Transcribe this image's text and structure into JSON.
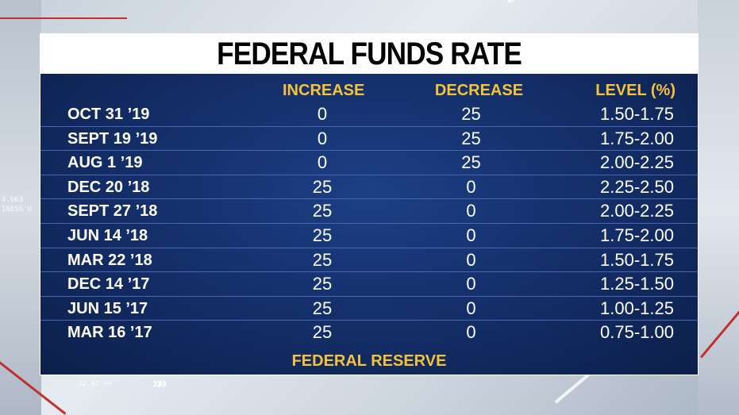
{
  "title": "FEDERAL FUNDS RATE",
  "columns": {
    "increase": "INCREASE",
    "decrease": "DECREASE",
    "level": "LEVEL (%)"
  },
  "rows": [
    {
      "date": "OCT 31 ’19",
      "increase": "0",
      "decrease": "25",
      "level": "1.50-1.75"
    },
    {
      "date": "SEPT 19 ’19",
      "increase": "0",
      "decrease": "25",
      "level": "1.75-2.00"
    },
    {
      "date": "AUG 1 ’19",
      "increase": "0",
      "decrease": "25",
      "level": "2.00-2.25"
    },
    {
      "date": "DEC 20 ’18",
      "increase": "25",
      "decrease": "0",
      "level": "2.25-2.50"
    },
    {
      "date": "SEPT 27 ’18",
      "increase": "25",
      "decrease": "0",
      "level": "2.00-2.25"
    },
    {
      "date": "JUN 14 ’18",
      "increase": "25",
      "decrease": "0",
      "level": "1.75-2.00"
    },
    {
      "date": "MAR 22 ’18",
      "increase": "25",
      "decrease": "0",
      "level": "1.50-1.75"
    },
    {
      "date": "DEC 14 ’17",
      "increase": "25",
      "decrease": "0",
      "level": "1.25-1.50"
    },
    {
      "date": "JUN 15 ’17",
      "increase": "25",
      "decrease": "0",
      "level": "1.00-1.25"
    },
    {
      "date": "MAR 16 ’17",
      "increase": "25",
      "decrease": "0",
      "level": "0.75-1.00"
    }
  ],
  "source": "FEDERAL RESERVE",
  "background": {
    "ticker_line1": "4.663",
    "ticker_line2": "INESS U",
    "bottom_number": "32.92 >>",
    "arrows": "»»"
  },
  "colors": {
    "accent_yellow": "#f5c33b",
    "panel_navy": "#132d66",
    "row_divider": "#4867b0",
    "title_bg": "#ffffff"
  }
}
